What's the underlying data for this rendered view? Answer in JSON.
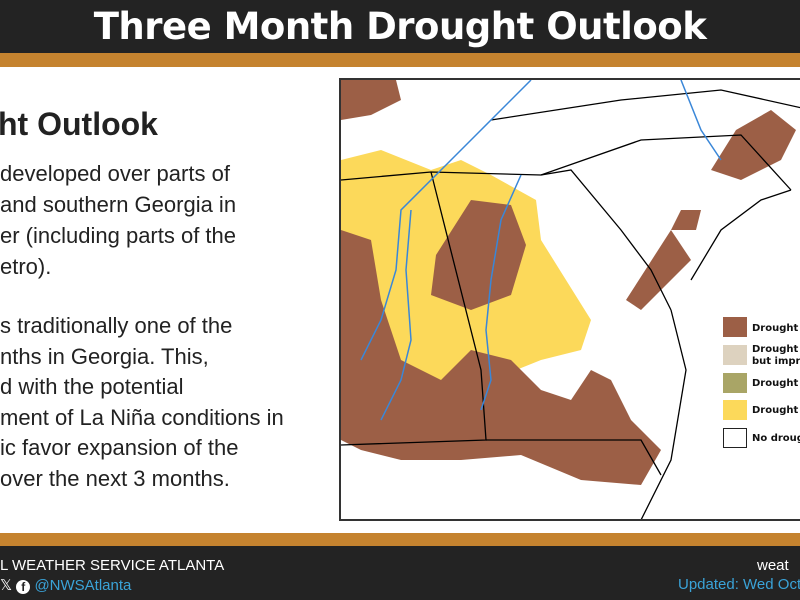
{
  "header": {
    "title": "Three Month Drought Outlook"
  },
  "content": {
    "subtitle": "ht Outlook",
    "paragraph1": [
      "developed over parts of",
      "and southern Georgia in",
      "er (including parts of the",
      "etro)."
    ],
    "paragraph2": [
      "s traditionally one of the",
      "nths in Georgia. This,",
      "d with the potential",
      "ment of La Niña conditions in",
      "ic favor expansion of the",
      "over the next 3 months."
    ]
  },
  "legend": {
    "items": [
      {
        "label": "Drought",
        "color": "#9c5f46"
      },
      {
        "label": "Drought",
        "label2": "but impr",
        "color": "#ddd2bf"
      },
      {
        "label": "Drought",
        "color": "#a9a566"
      },
      {
        "label": "Drought",
        "color": "#fcd95a"
      },
      {
        "label": "No droug",
        "color": "#ffffff"
      }
    ]
  },
  "footer": {
    "org": "L WEATHER SERVICE ATLANTA",
    "x_icon": "x-icon",
    "facebook_icon": "facebook-icon",
    "handle": "@NWSAtlanta",
    "site": "weat",
    "updated": "Updated: Wed Oct"
  }
}
